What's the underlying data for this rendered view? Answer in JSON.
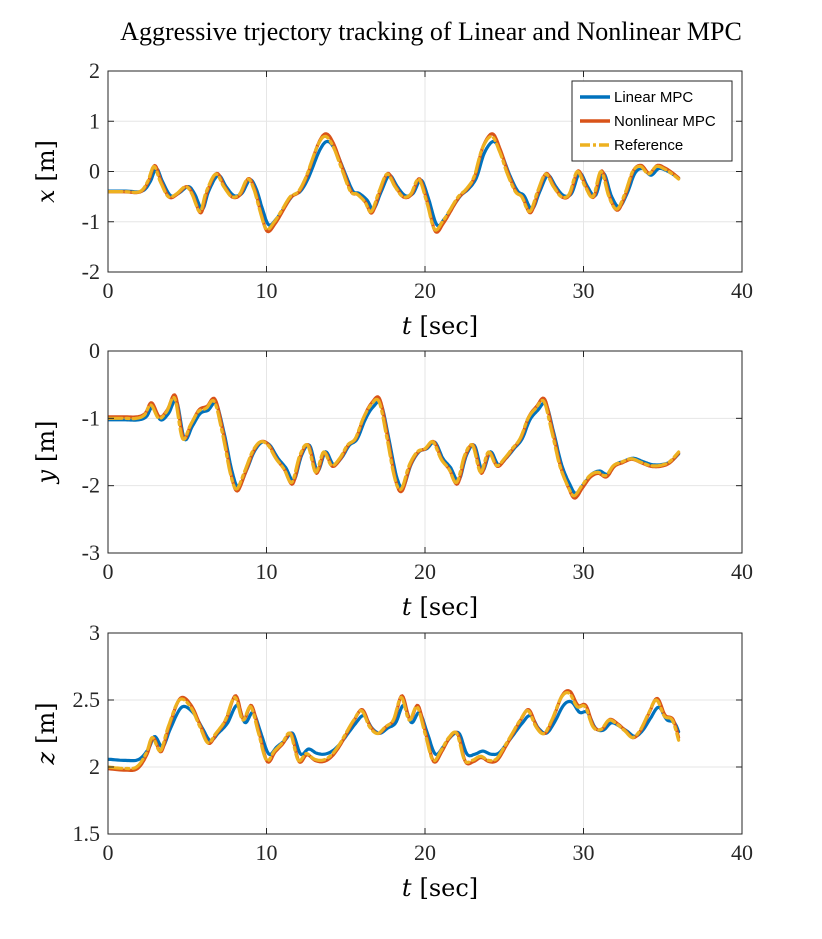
{
  "figure_title": "Aggressive trjectory tracking of Linear and Nonlinear MPC",
  "legend": {
    "entries": [
      {
        "label": "Linear MPC",
        "color": "#0072BD",
        "dash": "solid"
      },
      {
        "label": "Nonlinear MPC",
        "color": "#D95319",
        "dash": "solid"
      },
      {
        "label": "Reference",
        "color": "#EDB120",
        "dash": "dashdot"
      }
    ]
  },
  "chart_data": [
    {
      "type": "line",
      "name": "x-plot",
      "xlabel_var": "t",
      "xlabel_unit": "[sec]",
      "ylabel_var": "x",
      "ylabel_unit": "[m]",
      "xlim": [
        0,
        40
      ],
      "ylim": [
        -2,
        2
      ],
      "xticks": [
        0,
        10,
        20,
        30,
        40
      ],
      "yticks": [
        -2,
        -1,
        0,
        1,
        2
      ],
      "xtick_labels": [
        "0",
        "10",
        "20",
        "30",
        "40"
      ],
      "ytick_labels": [
        "-2",
        "-1",
        "0",
        "1",
        "2"
      ],
      "grid": true,
      "legend_location": "top-right",
      "reference": [
        [
          0,
          -0.4
        ],
        [
          1,
          -0.4
        ],
        [
          2,
          -0.4
        ],
        [
          2.5,
          -0.2
        ],
        [
          2.9,
          0.1
        ],
        [
          3.3,
          -0.2
        ],
        [
          3.8,
          -0.5
        ],
        [
          4.3,
          -0.45
        ],
        [
          4.9,
          -0.3
        ],
        [
          5.3,
          -0.45
        ],
        [
          5.8,
          -0.8
        ],
        [
          6.2,
          -0.4
        ],
        [
          6.8,
          -0.05
        ],
        [
          7.3,
          -0.3
        ],
        [
          7.8,
          -0.5
        ],
        [
          8.3,
          -0.45
        ],
        [
          8.8,
          -0.15
        ],
        [
          9.2,
          -0.35
        ],
        [
          9.6,
          -0.8
        ],
        [
          10,
          -1.15
        ],
        [
          10.5,
          -1.0
        ],
        [
          11,
          -0.75
        ],
        [
          11.5,
          -0.5
        ],
        [
          12,
          -0.4
        ],
        [
          12.5,
          -0.1
        ],
        [
          13.2,
          0.5
        ],
        [
          13.7,
          0.7
        ],
        [
          14.2,
          0.5
        ],
        [
          14.8,
          0.0
        ],
        [
          15.3,
          -0.4
        ],
        [
          15.7,
          -0.45
        ],
        [
          16.2,
          -0.6
        ],
        [
          16.6,
          -0.8
        ],
        [
          17.1,
          -0.4
        ],
        [
          17.6,
          -0.05
        ],
        [
          18.1,
          -0.3
        ],
        [
          18.6,
          -0.5
        ],
        [
          19.1,
          -0.45
        ],
        [
          19.6,
          -0.15
        ],
        [
          20.1,
          -0.6
        ],
        [
          20.6,
          -1.15
        ],
        [
          21.1,
          -1.0
        ],
        [
          21.6,
          -0.75
        ],
        [
          22.1,
          -0.5
        ],
        [
          22.6,
          -0.35
        ],
        [
          23.1,
          -0.1
        ],
        [
          23.6,
          0.45
        ],
        [
          24.2,
          0.7
        ],
        [
          24.7,
          0.4
        ],
        [
          25.2,
          -0.05
        ],
        [
          25.7,
          -0.4
        ],
        [
          26.1,
          -0.5
        ],
        [
          26.6,
          -0.8
        ],
        [
          27.1,
          -0.4
        ],
        [
          27.6,
          -0.05
        ],
        [
          28.1,
          -0.3
        ],
        [
          28.6,
          -0.5
        ],
        [
          29.1,
          -0.45
        ],
        [
          29.6,
          0.0
        ],
        [
          30.1,
          -0.3
        ],
        [
          30.6,
          -0.5
        ],
        [
          31.1,
          0.0
        ],
        [
          31.6,
          -0.5
        ],
        [
          32.1,
          -0.75
        ],
        [
          32.6,
          -0.45
        ],
        [
          33.1,
          0.0
        ],
        [
          33.6,
          0.1
        ],
        [
          34.1,
          -0.05
        ],
        [
          34.6,
          0.1
        ],
        [
          35.1,
          0.05
        ],
        [
          35.6,
          -0.05
        ],
        [
          36,
          -0.15
        ]
      ],
      "series": [
        {
          "name": "Linear MPC",
          "amp": 0.9,
          "lag": 0.15
        },
        {
          "name": "Nonlinear MPC",
          "amp": 1.05,
          "lag": 0.05
        },
        {
          "name": "Reference",
          "amp": 1.0,
          "lag": 0.0
        }
      ]
    },
    {
      "type": "line",
      "name": "y-plot",
      "xlabel_var": "t",
      "xlabel_unit": "[sec]",
      "ylabel_var": "y",
      "ylabel_unit": "[m]",
      "xlim": [
        0,
        40
      ],
      "ylim": [
        -3,
        0
      ],
      "xticks": [
        0,
        10,
        20,
        30,
        40
      ],
      "yticks": [
        -3,
        -2,
        -1,
        0
      ],
      "xtick_labels": [
        "0",
        "10",
        "20",
        "30",
        "40"
      ],
      "ytick_labels": [
        "-3",
        "-2",
        "-1",
        "0"
      ],
      "grid": true,
      "reference": [
        [
          0,
          -1.0
        ],
        [
          1,
          -1.0
        ],
        [
          1.8,
          -1.0
        ],
        [
          2.3,
          -0.95
        ],
        [
          2.7,
          -0.8
        ],
        [
          3.2,
          -1.0
        ],
        [
          3.7,
          -0.9
        ],
        [
          4.2,
          -0.7
        ],
        [
          4.7,
          -1.3
        ],
        [
          5.2,
          -1.1
        ],
        [
          5.7,
          -0.9
        ],
        [
          6.2,
          -0.85
        ],
        [
          6.7,
          -0.75
        ],
        [
          7.2,
          -1.2
        ],
        [
          7.7,
          -1.8
        ],
        [
          8.1,
          -2.05
        ],
        [
          8.6,
          -1.8
        ],
        [
          9.1,
          -1.5
        ],
        [
          9.6,
          -1.35
        ],
        [
          10.1,
          -1.4
        ],
        [
          10.6,
          -1.6
        ],
        [
          11.1,
          -1.75
        ],
        [
          11.6,
          -1.95
        ],
        [
          12.1,
          -1.55
        ],
        [
          12.6,
          -1.4
        ],
        [
          13.1,
          -1.8
        ],
        [
          13.6,
          -1.5
        ],
        [
          14.1,
          -1.7
        ],
        [
          14.6,
          -1.6
        ],
        [
          15.1,
          -1.4
        ],
        [
          15.6,
          -1.3
        ],
        [
          16.1,
          -1.0
        ],
        [
          16.6,
          -0.8
        ],
        [
          17.1,
          -0.75
        ],
        [
          17.6,
          -1.3
        ],
        [
          18.1,
          -1.9
        ],
        [
          18.5,
          -2.05
        ],
        [
          19.0,
          -1.7
        ],
        [
          19.5,
          -1.5
        ],
        [
          20.0,
          -1.45
        ],
        [
          20.5,
          -1.35
        ],
        [
          21.0,
          -1.6
        ],
        [
          21.5,
          -1.75
        ],
        [
          22.0,
          -1.95
        ],
        [
          22.5,
          -1.55
        ],
        [
          23.0,
          -1.4
        ],
        [
          23.5,
          -1.8
        ],
        [
          24.0,
          -1.5
        ],
        [
          24.5,
          -1.7
        ],
        [
          25.0,
          -1.6
        ],
        [
          25.5,
          -1.45
        ],
        [
          26.0,
          -1.3
        ],
        [
          26.5,
          -1.0
        ],
        [
          27.0,
          -0.85
        ],
        [
          27.5,
          -0.75
        ],
        [
          28.0,
          -1.2
        ],
        [
          28.5,
          -1.7
        ],
        [
          29.0,
          -2.0
        ],
        [
          29.4,
          -2.15
        ],
        [
          29.9,
          -2.0
        ],
        [
          30.4,
          -1.85
        ],
        [
          30.9,
          -1.8
        ],
        [
          31.4,
          -1.85
        ],
        [
          31.9,
          -1.7
        ],
        [
          32.4,
          -1.65
        ],
        [
          33.0,
          -1.6
        ],
        [
          33.6,
          -1.65
        ],
        [
          34.2,
          -1.7
        ],
        [
          34.8,
          -1.7
        ],
        [
          35.4,
          -1.65
        ],
        [
          36,
          -1.5
        ]
      ],
      "series": [
        {
          "name": "Linear MPC",
          "amp": 0.95,
          "lag": 0.12
        },
        {
          "name": "Nonlinear MPC",
          "amp": 1.05,
          "lag": 0.05
        },
        {
          "name": "Reference",
          "amp": 1.0,
          "lag": 0.0
        }
      ]
    },
    {
      "type": "line",
      "name": "z-plot",
      "xlabel_var": "t",
      "xlabel_unit": "[sec]",
      "ylabel_var": "z",
      "ylabel_unit": "[m]",
      "xlim": [
        0,
        40
      ],
      "ylim": [
        1.5,
        3
      ],
      "xticks": [
        0,
        10,
        20,
        30,
        40
      ],
      "yticks": [
        1.5,
        2,
        2.5,
        3
      ],
      "xtick_labels": [
        "0",
        "10",
        "20",
        "30",
        "40"
      ],
      "ytick_labels": [
        "1.5",
        "2",
        "2.5",
        "3"
      ],
      "grid": true,
      "reference": [
        [
          0,
          2.0
        ],
        [
          1,
          1.99
        ],
        [
          1.8,
          2.0
        ],
        [
          2.4,
          2.1
        ],
        [
          2.8,
          2.22
        ],
        [
          3.3,
          2.12
        ],
        [
          3.8,
          2.3
        ],
        [
          4.5,
          2.5
        ],
        [
          5.2,
          2.45
        ],
        [
          5.8,
          2.3
        ],
        [
          6.3,
          2.18
        ],
        [
          6.8,
          2.25
        ],
        [
          7.4,
          2.35
        ],
        [
          8.0,
          2.52
        ],
        [
          8.5,
          2.35
        ],
        [
          9.0,
          2.45
        ],
        [
          9.5,
          2.25
        ],
        [
          10.0,
          2.05
        ],
        [
          10.5,
          2.12
        ],
        [
          11.0,
          2.18
        ],
        [
          11.5,
          2.25
        ],
        [
          12.0,
          2.05
        ],
        [
          12.5,
          2.1
        ],
        [
          13.0,
          2.06
        ],
        [
          13.5,
          2.05
        ],
        [
          14.0,
          2.08
        ],
        [
          14.5,
          2.15
        ],
        [
          15.0,
          2.25
        ],
        [
          15.5,
          2.35
        ],
        [
          16.0,
          2.42
        ],
        [
          16.5,
          2.3
        ],
        [
          17.0,
          2.25
        ],
        [
          17.5,
          2.3
        ],
        [
          18.0,
          2.35
        ],
        [
          18.5,
          2.52
        ],
        [
          19.0,
          2.35
        ],
        [
          19.5,
          2.45
        ],
        [
          20.0,
          2.25
        ],
        [
          20.5,
          2.05
        ],
        [
          21.0,
          2.12
        ],
        [
          21.5,
          2.22
        ],
        [
          22.0,
          2.25
        ],
        [
          22.5,
          2.05
        ],
        [
          23.0,
          2.05
        ],
        [
          23.5,
          2.08
        ],
        [
          24.0,
          2.05
        ],
        [
          24.5,
          2.06
        ],
        [
          25.0,
          2.15
        ],
        [
          25.5,
          2.25
        ],
        [
          26.0,
          2.35
        ],
        [
          26.5,
          2.42
        ],
        [
          27.0,
          2.3
        ],
        [
          27.5,
          2.25
        ],
        [
          28.0,
          2.35
        ],
        [
          28.6,
          2.52
        ],
        [
          29.1,
          2.55
        ],
        [
          29.6,
          2.45
        ],
        [
          30.1,
          2.45
        ],
        [
          30.6,
          2.3
        ],
        [
          31.1,
          2.28
        ],
        [
          31.6,
          2.35
        ],
        [
          32.1,
          2.32
        ],
        [
          32.6,
          2.27
        ],
        [
          33.1,
          2.22
        ],
        [
          33.6,
          2.28
        ],
        [
          34.1,
          2.4
        ],
        [
          34.6,
          2.5
        ],
        [
          35.1,
          2.38
        ],
        [
          35.6,
          2.35
        ],
        [
          36,
          2.2
        ]
      ],
      "series": [
        {
          "name": "Linear MPC",
          "amp": 0.78,
          "lag": 0.15
        },
        {
          "name": "Nonlinear MPC",
          "amp": 1.05,
          "lag": 0.05
        },
        {
          "name": "Reference",
          "amp": 1.0,
          "lag": 0.0
        }
      ]
    }
  ]
}
